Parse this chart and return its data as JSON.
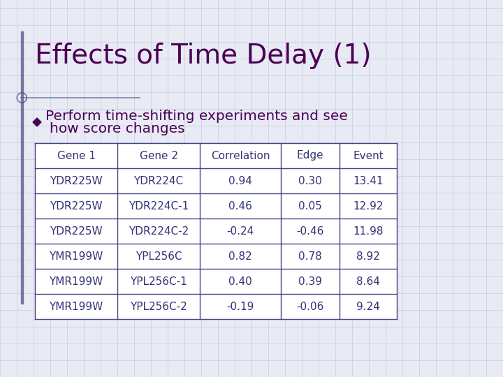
{
  "title": "Effects of Time Delay (1)",
  "title_color": "#4B0055",
  "title_fontsize": 28,
  "bullet_text_line1": "Perform time-shifting experiments and see",
  "bullet_text_line2": "how score changes",
  "bullet_color": "#4B0055",
  "bullet_fontsize": 14.5,
  "background_color": "#E8EAF4",
  "grid_color": "#C8CCDE",
  "table_headers": [
    "Gene 1",
    "Gene 2",
    "Correlation",
    "Edge",
    "Event"
  ],
  "table_data": [
    [
      "YDR225W",
      "YDR224C",
      "0.94",
      "0.30",
      "13.41"
    ],
    [
      "YDR225W",
      "YDR224C-1",
      "0.46",
      "0.05",
      "12.92"
    ],
    [
      "YDR225W",
      "YDR224C-2",
      "-0.24",
      "-0.46",
      "11.98"
    ],
    [
      "YMR199W",
      "YPL256C",
      "0.82",
      "0.78",
      "8.92"
    ],
    [
      "YMR199W",
      "YPL256C-1",
      "0.40",
      "0.39",
      "8.64"
    ],
    [
      "YMR199W",
      "YPL256C-2",
      "-0.19",
      "-0.06",
      "9.24"
    ]
  ],
  "table_text_color": "#333377",
  "table_border_color": "#444488",
  "table_fontsize": 11,
  "header_fontsize": 11,
  "accent_color": "#555588",
  "left_bar_color": "#555588",
  "circle_color": "#555588"
}
